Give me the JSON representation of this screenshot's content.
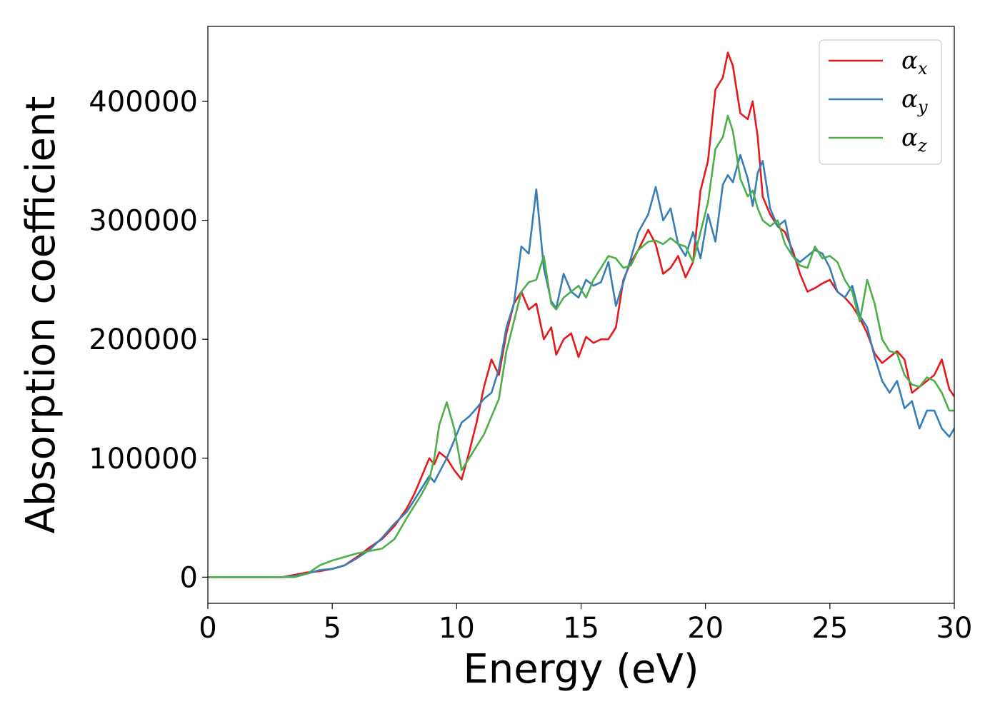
{
  "chart_data": {
    "type": "line",
    "title": "",
    "xlabel": "Energy (eV)",
    "ylabel": "Absorption coefficient",
    "xlim": [
      0,
      30
    ],
    "ylim": [
      -22000,
      463000
    ],
    "xticks": [
      0,
      5,
      10,
      15,
      20,
      25,
      30
    ],
    "xtick_labels": [
      "0",
      "5",
      "10",
      "15",
      "20",
      "25",
      "30"
    ],
    "yticks": [
      0,
      100000,
      200000,
      300000,
      400000
    ],
    "ytick_labels": [
      "0",
      "100000",
      "200000",
      "300000",
      "400000"
    ],
    "grid": false,
    "legend_position": "top-right",
    "series": [
      {
        "name": "α",
        "subscript": "x",
        "color": "#e41a1c",
        "x": [
          0,
          1,
          2,
          3,
          3.5,
          4,
          4.5,
          5,
          5.5,
          6,
          6.5,
          7,
          7.5,
          8,
          8.3,
          8.6,
          8.9,
          9.1,
          9.3,
          9.6,
          9.9,
          10.2,
          10.5,
          10.8,
          11.1,
          11.4,
          11.7,
          12.0,
          12.3,
          12.6,
          12.9,
          13.2,
          13.5,
          13.8,
          14.0,
          14.3,
          14.6,
          14.9,
          15.2,
          15.5,
          15.8,
          16.1,
          16.4,
          16.7,
          17.0,
          17.3,
          17.7,
          18.0,
          18.3,
          18.6,
          18.9,
          19.2,
          19.5,
          19.8,
          20.1,
          20.4,
          20.7,
          20.9,
          21.1,
          21.4,
          21.7,
          21.9,
          22.1,
          22.3,
          22.6,
          22.9,
          23.2,
          23.5,
          23.8,
          24.1,
          24.4,
          24.7,
          25.0,
          25.3,
          25.6,
          25.9,
          26.2,
          26.5,
          26.8,
          27.1,
          27.4,
          27.7,
          28.0,
          28.3,
          28.6,
          28.9,
          29.2,
          29.5,
          29.8,
          30.0
        ],
        "y": [
          0,
          0,
          0,
          0,
          2000,
          4000,
          5000,
          7000,
          10000,
          17000,
          25000,
          32000,
          43000,
          58000,
          70000,
          85000,
          100000,
          95000,
          105000,
          100000,
          90000,
          82000,
          105000,
          130000,
          160000,
          183000,
          170000,
          205000,
          230000,
          240000,
          225000,
          230000,
          200000,
          210000,
          187000,
          200000,
          205000,
          185000,
          202000,
          197000,
          200000,
          200000,
          210000,
          250000,
          265000,
          275000,
          292000,
          280000,
          255000,
          260000,
          270000,
          252000,
          265000,
          325000,
          350000,
          410000,
          420000,
          441000,
          430000,
          390000,
          385000,
          400000,
          370000,
          320000,
          305000,
          295000,
          290000,
          275000,
          255000,
          240000,
          243000,
          247000,
          250000,
          240000,
          235000,
          228000,
          218000,
          205000,
          188000,
          180000,
          185000,
          190000,
          183000,
          155000,
          160000,
          165000,
          170000,
          183000,
          158000,
          152000
        ]
      },
      {
        "name": "α",
        "subscript": "y",
        "color": "#377eb8",
        "x": [
          0,
          1,
          2,
          3,
          3.5,
          4,
          4.5,
          5,
          5.5,
          6,
          6.5,
          7,
          7.5,
          8,
          8.3,
          8.6,
          8.9,
          9.1,
          9.3,
          9.6,
          9.9,
          10.2,
          10.5,
          10.8,
          11.1,
          11.4,
          11.7,
          12.0,
          12.3,
          12.6,
          12.9,
          13.2,
          13.5,
          13.8,
          14.0,
          14.3,
          14.6,
          14.9,
          15.2,
          15.5,
          15.8,
          16.1,
          16.4,
          16.7,
          17.0,
          17.3,
          17.7,
          18.0,
          18.3,
          18.6,
          18.9,
          19.2,
          19.5,
          19.8,
          20.1,
          20.4,
          20.7,
          20.9,
          21.1,
          21.4,
          21.7,
          21.9,
          22.1,
          22.3,
          22.6,
          22.9,
          23.2,
          23.5,
          23.8,
          24.1,
          24.4,
          24.7,
          25.0,
          25.3,
          25.6,
          25.9,
          26.2,
          26.5,
          26.8,
          27.1,
          27.4,
          27.7,
          28.0,
          28.3,
          28.6,
          28.9,
          29.2,
          29.5,
          29.8,
          30.0
        ],
        "y": [
          0,
          0,
          0,
          0,
          1000,
          3000,
          6000,
          7000,
          10000,
          16000,
          23000,
          33000,
          45000,
          55000,
          65000,
          75000,
          85000,
          80000,
          88000,
          100000,
          115000,
          130000,
          135000,
          142000,
          150000,
          155000,
          175000,
          210000,
          230000,
          278000,
          272000,
          326000,
          260000,
          232000,
          226000,
          255000,
          240000,
          235000,
          250000,
          245000,
          248000,
          265000,
          228000,
          248000,
          268000,
          290000,
          305000,
          328000,
          300000,
          310000,
          280000,
          270000,
          290000,
          268000,
          305000,
          282000,
          330000,
          338000,
          332000,
          355000,
          335000,
          312000,
          340000,
          350000,
          310000,
          295000,
          300000,
          270000,
          265000,
          270000,
          275000,
          272000,
          260000,
          240000,
          235000,
          245000,
          220000,
          210000,
          185000,
          165000,
          155000,
          165000,
          142000,
          148000,
          125000,
          140000,
          140000,
          125000,
          118000,
          125000
        ]
      },
      {
        "name": "α",
        "subscript": "z",
        "color": "#4daf4a",
        "x": [
          0,
          1,
          2,
          3,
          3.5,
          4,
          4.5,
          5,
          5.5,
          6,
          6.5,
          7,
          7.5,
          8,
          8.3,
          8.6,
          8.9,
          9.1,
          9.3,
          9.6,
          9.9,
          10.2,
          10.5,
          10.8,
          11.1,
          11.4,
          11.7,
          12.0,
          12.3,
          12.6,
          12.9,
          13.2,
          13.5,
          13.8,
          14.0,
          14.3,
          14.6,
          14.9,
          15.2,
          15.5,
          15.8,
          16.1,
          16.4,
          16.7,
          17.0,
          17.3,
          17.7,
          18.0,
          18.3,
          18.6,
          18.9,
          19.2,
          19.5,
          19.8,
          20.1,
          20.4,
          20.7,
          20.9,
          21.1,
          21.4,
          21.7,
          21.9,
          22.1,
          22.3,
          22.6,
          22.9,
          23.2,
          23.5,
          23.8,
          24.1,
          24.4,
          24.7,
          25.0,
          25.3,
          25.6,
          25.9,
          26.2,
          26.5,
          26.8,
          27.1,
          27.4,
          27.7,
          28.0,
          28.3,
          28.6,
          28.9,
          29.2,
          29.5,
          29.8,
          30.0
        ],
        "y": [
          0,
          0,
          0,
          0,
          0,
          3000,
          10000,
          14000,
          17000,
          20000,
          22000,
          24000,
          32000,
          50000,
          60000,
          70000,
          82000,
          100000,
          128000,
          147000,
          125000,
          90000,
          100000,
          110000,
          120000,
          135000,
          150000,
          190000,
          215000,
          240000,
          248000,
          250000,
          270000,
          230000,
          225000,
          235000,
          240000,
          245000,
          235000,
          250000,
          260000,
          270000,
          268000,
          260000,
          262000,
          275000,
          282000,
          283000,
          280000,
          285000,
          280000,
          278000,
          265000,
          290000,
          315000,
          360000,
          370000,
          388000,
          375000,
          335000,
          320000,
          325000,
          310000,
          300000,
          295000,
          300000,
          280000,
          270000,
          262000,
          260000,
          278000,
          268000,
          270000,
          265000,
          250000,
          240000,
          215000,
          250000,
          230000,
          200000,
          190000,
          188000,
          170000,
          162000,
          160000,
          168000,
          165000,
          155000,
          140000,
          140000
        ]
      }
    ]
  }
}
